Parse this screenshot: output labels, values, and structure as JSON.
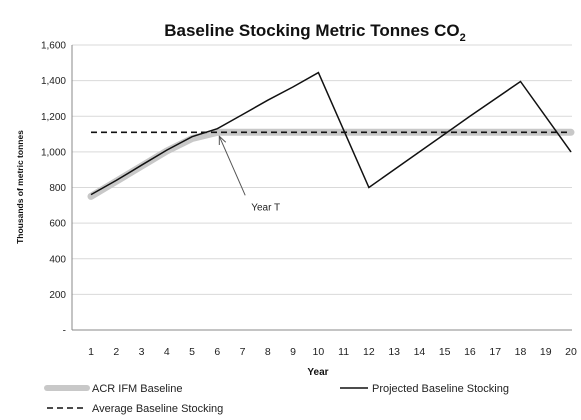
{
  "chart_data": {
    "type": "line",
    "title": "Baseline Stocking Metric Tonnes CO",
    "title_subscript": "2",
    "xlabel": "Year",
    "ylabel": "Thousands of metric tonnes",
    "x": [
      1,
      2,
      3,
      4,
      5,
      6,
      7,
      8,
      9,
      10,
      11,
      12,
      13,
      14,
      15,
      16,
      17,
      18,
      19,
      20
    ],
    "xlim": [
      1,
      20
    ],
    "ylim": [
      0,
      1600
    ],
    "yticks": [
      {
        "value": 0,
        "label": "-"
      },
      {
        "value": 200,
        "label": "200"
      },
      {
        "value": 400,
        "label": "400"
      },
      {
        "value": 600,
        "label": "600"
      },
      {
        "value": 800,
        "label": "800"
      },
      {
        "value": 1000,
        "label": "1,000"
      },
      {
        "value": 1200,
        "label": "1,200"
      },
      {
        "value": 1400,
        "label": "1,400"
      },
      {
        "value": 1600,
        "label": "1,600"
      }
    ],
    "grid": "horizontal",
    "legend_position": "bottom",
    "series": [
      {
        "name": "ACR IFM Baseline",
        "color": "#c8c8c8",
        "style": "thick",
        "points": [
          {
            "x": 1,
            "y": 750
          },
          {
            "x": 2,
            "y": 835
          },
          {
            "x": 3,
            "y": 920
          },
          {
            "x": 4,
            "y": 1005
          },
          {
            "x": 5,
            "y": 1075
          },
          {
            "x": 6,
            "y": 1110
          },
          {
            "x": 20,
            "y": 1110
          }
        ]
      },
      {
        "name": "Projected Baseline Stocking",
        "color": "#111111",
        "style": "solid",
        "points": [
          {
            "x": 1,
            "y": 760
          },
          {
            "x": 2,
            "y": 840
          },
          {
            "x": 3,
            "y": 925
          },
          {
            "x": 4,
            "y": 1010
          },
          {
            "x": 5,
            "y": 1085
          },
          {
            "x": 6,
            "y": 1130
          },
          {
            "x": 7,
            "y": 1210
          },
          {
            "x": 8,
            "y": 1290
          },
          {
            "x": 9,
            "y": 1365
          },
          {
            "x": 10,
            "y": 1445
          },
          {
            "x": 12,
            "y": 800
          },
          {
            "x": 14,
            "y": 1000
          },
          {
            "x": 16,
            "y": 1200
          },
          {
            "x": 18,
            "y": 1395
          },
          {
            "x": 20,
            "y": 1000
          }
        ]
      },
      {
        "name": "Average Baseline Stocking",
        "color": "#111111",
        "style": "dashed",
        "points": [
          {
            "x": 1,
            "y": 1110
          },
          {
            "x": 20,
            "y": 1110
          }
        ]
      }
    ],
    "annotations": [
      {
        "text": "Year T",
        "point": {
          "x": 6,
          "y": 1110
        },
        "text_at": {
          "x": 7.5,
          "y": 700
        }
      }
    ]
  }
}
